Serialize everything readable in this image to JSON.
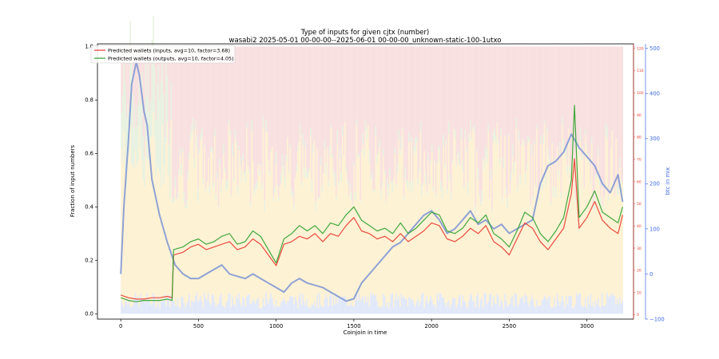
{
  "chart_data": {
    "type": "line",
    "title": "Type of inputs for given cjtx (number)",
    "subtitle": "wasabi2 2025-05-01 00-00-00--2025-06-01 00-00-00_unknown-static-100-1utxo",
    "xlabel": "Coinjoin in time",
    "ylabel": "Fraction of input numbers",
    "ylabel_right": "btc in mix",
    "xlim": [
      -150,
      3300
    ],
    "ylim": [
      -0.02,
      1.01
    ],
    "ylim_right": [
      -100,
      510
    ],
    "ylim_right_inner": [
      -2,
      122
    ],
    "x_ticks": [
      0,
      500,
      1000,
      1500,
      2000,
      2500,
      3000
    ],
    "y_ticks": [
      0.0,
      0.2,
      0.4,
      0.6,
      0.8,
      1.0
    ],
    "y_right_ticks": [
      -100,
      0,
      100,
      200,
      300,
      400,
      500
    ],
    "y_right_inner_ticks": [
      0,
      10,
      20,
      30,
      40,
      50,
      60,
      70,
      80,
      90,
      100,
      110,
      120
    ],
    "legend_position": "top-left",
    "series": [
      {
        "name": "Predicted wallets (inputs, avg=10, factor=3.68)",
        "color": "#e8392d",
        "points": [
          [
            0,
            0.07
          ],
          [
            50,
            0.06
          ],
          [
            100,
            0.055
          ],
          [
            150,
            0.055
          ],
          [
            200,
            0.06
          ],
          [
            250,
            0.06
          ],
          [
            300,
            0.065
          ],
          [
            330,
            0.06
          ],
          [
            340,
            0.22
          ],
          [
            400,
            0.23
          ],
          [
            450,
            0.25
          ],
          [
            500,
            0.26
          ],
          [
            550,
            0.24
          ],
          [
            600,
            0.25
          ],
          [
            650,
            0.26
          ],
          [
            700,
            0.27
          ],
          [
            750,
            0.24
          ],
          [
            800,
            0.25
          ],
          [
            850,
            0.28
          ],
          [
            900,
            0.26
          ],
          [
            950,
            0.22
          ],
          [
            1000,
            0.18
          ],
          [
            1050,
            0.26
          ],
          [
            1100,
            0.27
          ],
          [
            1150,
            0.29
          ],
          [
            1200,
            0.28
          ],
          [
            1250,
            0.3
          ],
          [
            1300,
            0.27
          ],
          [
            1350,
            0.3
          ],
          [
            1400,
            0.29
          ],
          [
            1450,
            0.33
          ],
          [
            1500,
            0.36
          ],
          [
            1550,
            0.31
          ],
          [
            1600,
            0.3
          ],
          [
            1650,
            0.28
          ],
          [
            1700,
            0.29
          ],
          [
            1750,
            0.27
          ],
          [
            1800,
            0.3
          ],
          [
            1850,
            0.27
          ],
          [
            1900,
            0.29
          ],
          [
            1950,
            0.31
          ],
          [
            2000,
            0.34
          ],
          [
            2050,
            0.33
          ],
          [
            2100,
            0.28
          ],
          [
            2150,
            0.27
          ],
          [
            2200,
            0.29
          ],
          [
            2250,
            0.32
          ],
          [
            2300,
            0.3
          ],
          [
            2350,
            0.33
          ],
          [
            2400,
            0.27
          ],
          [
            2450,
            0.25
          ],
          [
            2500,
            0.22
          ],
          [
            2550,
            0.28
          ],
          [
            2600,
            0.34
          ],
          [
            2650,
            0.32
          ],
          [
            2700,
            0.27
          ],
          [
            2750,
            0.24
          ],
          [
            2800,
            0.28
          ],
          [
            2850,
            0.32
          ],
          [
            2900,
            0.45
          ],
          [
            2920,
            0.58
          ],
          [
            2950,
            0.32
          ],
          [
            3000,
            0.36
          ],
          [
            3050,
            0.42
          ],
          [
            3100,
            0.35
          ],
          [
            3150,
            0.32
          ],
          [
            3200,
            0.3
          ],
          [
            3230,
            0.37
          ]
        ]
      },
      {
        "name": "Predicted wallets (outputs, avg=10, factor=4.05)",
        "color": "#2ca02c",
        "points": [
          [
            0,
            0.06
          ],
          [
            50,
            0.05
          ],
          [
            100,
            0.045
          ],
          [
            150,
            0.05
          ],
          [
            200,
            0.05
          ],
          [
            250,
            0.05
          ],
          [
            300,
            0.055
          ],
          [
            330,
            0.05
          ],
          [
            340,
            0.24
          ],
          [
            400,
            0.25
          ],
          [
            450,
            0.27
          ],
          [
            500,
            0.28
          ],
          [
            550,
            0.26
          ],
          [
            600,
            0.27
          ],
          [
            650,
            0.29
          ],
          [
            700,
            0.3
          ],
          [
            750,
            0.26
          ],
          [
            800,
            0.27
          ],
          [
            850,
            0.31
          ],
          [
            900,
            0.29
          ],
          [
            950,
            0.24
          ],
          [
            1000,
            0.19
          ],
          [
            1050,
            0.28
          ],
          [
            1100,
            0.3
          ],
          [
            1150,
            0.33
          ],
          [
            1200,
            0.31
          ],
          [
            1250,
            0.33
          ],
          [
            1300,
            0.3
          ],
          [
            1350,
            0.34
          ],
          [
            1400,
            0.33
          ],
          [
            1450,
            0.37
          ],
          [
            1500,
            0.4
          ],
          [
            1550,
            0.35
          ],
          [
            1600,
            0.33
          ],
          [
            1650,
            0.31
          ],
          [
            1700,
            0.32
          ],
          [
            1750,
            0.3
          ],
          [
            1800,
            0.34
          ],
          [
            1850,
            0.3
          ],
          [
            1900,
            0.32
          ],
          [
            1950,
            0.35
          ],
          [
            2000,
            0.38
          ],
          [
            2050,
            0.37
          ],
          [
            2100,
            0.31
          ],
          [
            2150,
            0.3
          ],
          [
            2200,
            0.32
          ],
          [
            2250,
            0.36
          ],
          [
            2300,
            0.34
          ],
          [
            2350,
            0.37
          ],
          [
            2400,
            0.3
          ],
          [
            2450,
            0.28
          ],
          [
            2500,
            0.25
          ],
          [
            2550,
            0.31
          ],
          [
            2600,
            0.38
          ],
          [
            2650,
            0.36
          ],
          [
            2700,
            0.3
          ],
          [
            2750,
            0.27
          ],
          [
            2800,
            0.31
          ],
          [
            2850,
            0.36
          ],
          [
            2900,
            0.5
          ],
          [
            2920,
            0.78
          ],
          [
            2950,
            0.36
          ],
          [
            3000,
            0.4
          ],
          [
            3050,
            0.46
          ],
          [
            3100,
            0.38
          ],
          [
            3150,
            0.36
          ],
          [
            3200,
            0.34
          ],
          [
            3230,
            0.4
          ]
        ]
      },
      {
        "name": "btc in mix",
        "axis": "right",
        "color": "#7b93d4",
        "points": [
          [
            0,
            0
          ],
          [
            20,
            150
          ],
          [
            50,
            300
          ],
          [
            70,
            420
          ],
          [
            100,
            470
          ],
          [
            120,
            440
          ],
          [
            150,
            360
          ],
          [
            170,
            330
          ],
          [
            200,
            210
          ],
          [
            250,
            130
          ],
          [
            300,
            70
          ],
          [
            350,
            20
          ],
          [
            400,
            0
          ],
          [
            450,
            -10
          ],
          [
            500,
            -10
          ],
          [
            550,
            0
          ],
          [
            600,
            10
          ],
          [
            650,
            20
          ],
          [
            700,
            0
          ],
          [
            750,
            -5
          ],
          [
            800,
            -10
          ],
          [
            850,
            0
          ],
          [
            900,
            -10
          ],
          [
            950,
            -20
          ],
          [
            1000,
            -30
          ],
          [
            1050,
            -40
          ],
          [
            1100,
            -20
          ],
          [
            1150,
            -10
          ],
          [
            1200,
            -20
          ],
          [
            1250,
            -25
          ],
          [
            1300,
            -30
          ],
          [
            1350,
            -40
          ],
          [
            1400,
            -50
          ],
          [
            1450,
            -60
          ],
          [
            1500,
            -55
          ],
          [
            1550,
            -20
          ],
          [
            1600,
            0
          ],
          [
            1650,
            20
          ],
          [
            1700,
            40
          ],
          [
            1750,
            60
          ],
          [
            1800,
            70
          ],
          [
            1850,
            90
          ],
          [
            1900,
            110
          ],
          [
            1950,
            130
          ],
          [
            2000,
            140
          ],
          [
            2050,
            120
          ],
          [
            2100,
            90
          ],
          [
            2150,
            100
          ],
          [
            2200,
            120
          ],
          [
            2250,
            140
          ],
          [
            2300,
            110
          ],
          [
            2350,
            120
          ],
          [
            2400,
            100
          ],
          [
            2450,
            110
          ],
          [
            2500,
            90
          ],
          [
            2550,
            100
          ],
          [
            2600,
            110
          ],
          [
            2650,
            120
          ],
          [
            2700,
            200
          ],
          [
            2750,
            240
          ],
          [
            2800,
            250
          ],
          [
            2850,
            270
          ],
          [
            2900,
            310
          ],
          [
            2950,
            280
          ],
          [
            3000,
            260
          ],
          [
            3050,
            240
          ],
          [
            3100,
            200
          ],
          [
            3150,
            180
          ],
          [
            3200,
            220
          ],
          [
            3230,
            160
          ]
        ]
      }
    ],
    "background_bands": {
      "colors": [
        "#f4c7c7",
        "#fde7b0",
        "#d6e8c9",
        "#c9d6f4"
      ]
    }
  }
}
